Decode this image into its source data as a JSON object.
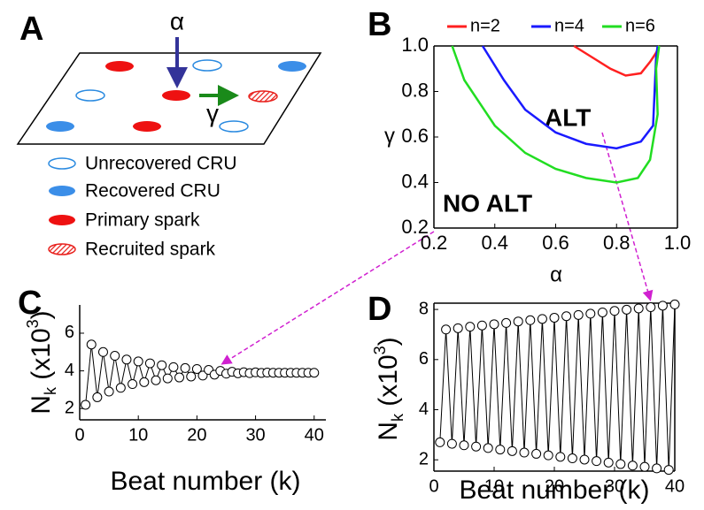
{
  "panel_a": {
    "label": "A",
    "alpha": "α",
    "gamma": "γ",
    "legend": [
      "Unrecovered CRU",
      "Recovered CRU",
      "Primary spark",
      "Recruited spark"
    ]
  },
  "chart_data": [
    {
      "type": "line",
      "panel_label": "B",
      "xlabel": "α",
      "ylabel": "γ",
      "xlim": [
        0.2,
        1.0
      ],
      "ylim": [
        0.2,
        1.0
      ],
      "xticks": [
        0.2,
        0.4,
        0.6,
        0.8,
        {
          "value": 1,
          "label": "1.0"
        }
      ],
      "yticks": [
        0.2,
        0.4,
        0.6,
        0.8,
        {
          "value": 1,
          "label": "1.0"
        }
      ],
      "legend": "top",
      "annotations": [
        "ALT",
        "NO ALT"
      ],
      "series": [
        {
          "name": "n=2",
          "color": "#ff2020",
          "x": [
            0.66,
            0.72,
            0.78,
            0.83,
            0.88,
            0.91,
            0.93,
            0.94
          ],
          "values": [
            1.0,
            0.95,
            0.9,
            0.87,
            0.88,
            0.93,
            0.97,
            1.0
          ]
        },
        {
          "name": "n=4",
          "color": "#1a1aff",
          "x": [
            0.36,
            0.43,
            0.5,
            0.6,
            0.7,
            0.8,
            0.88,
            0.92,
            0.925,
            0.93,
            0.935
          ],
          "values": [
            1.0,
            0.85,
            0.72,
            0.62,
            0.57,
            0.55,
            0.58,
            0.65,
            0.8,
            0.95,
            1.0
          ]
        },
        {
          "name": "n=6",
          "color": "#22dd22",
          "x": [
            0.26,
            0.3,
            0.4,
            0.5,
            0.6,
            0.7,
            0.8,
            0.87,
            0.91,
            0.935,
            0.93,
            0.94
          ],
          "values": [
            1.0,
            0.85,
            0.65,
            0.53,
            0.46,
            0.42,
            0.4,
            0.42,
            0.5,
            0.7,
            0.9,
            1.0
          ]
        }
      ]
    },
    {
      "type": "line",
      "panel_label": "C",
      "xlabel": "Beat number (k)",
      "ylabel": [
        "N",
        "k",
        " (x10",
        "3",
        ")"
      ],
      "xlim": [
        0,
        42
      ],
      "ylim": [
        1.4,
        7.5
      ],
      "xticks": [
        0,
        10,
        20,
        30,
        40
      ],
      "yticks": [
        2,
        4,
        6
      ],
      "x": [
        1,
        2,
        3,
        4,
        5,
        6,
        7,
        8,
        9,
        10,
        11,
        12,
        13,
        14,
        15,
        16,
        17,
        18,
        19,
        20,
        21,
        22,
        23,
        24,
        25,
        26,
        27,
        28,
        29,
        30,
        31,
        32,
        33,
        34,
        35,
        36,
        37,
        38,
        39,
        40
      ],
      "values": [
        2.2,
        5.4,
        2.6,
        5.0,
        2.9,
        4.8,
        3.1,
        4.6,
        3.3,
        4.5,
        3.4,
        4.4,
        3.5,
        4.3,
        3.6,
        4.2,
        3.65,
        4.15,
        3.7,
        4.1,
        3.75,
        4.05,
        3.8,
        4.0,
        3.85,
        3.95,
        3.87,
        3.93,
        3.88,
        3.92,
        3.89,
        3.91,
        3.9,
        3.9,
        3.9,
        3.9,
        3.9,
        3.9,
        3.9,
        3.9
      ]
    },
    {
      "type": "line",
      "panel_label": "D",
      "xlabel": "Beat number (k)",
      "ylabel": [
        "N",
        "k",
        " (x10",
        "3",
        ")"
      ],
      "xlim": [
        0,
        40
      ],
      "ylim": [
        1.55,
        8.25
      ],
      "xticks": [
        0,
        10,
        20,
        30,
        40
      ],
      "yticks": [
        2,
        4,
        6,
        8
      ],
      "x": [
        1,
        2,
        3,
        4,
        5,
        6,
        7,
        8,
        9,
        10,
        11,
        12,
        13,
        14,
        15,
        16,
        17,
        18,
        19,
        20,
        21,
        22,
        23,
        24,
        25,
        26,
        27,
        28,
        29,
        30,
        31,
        32,
        33,
        34,
        35,
        36,
        37,
        38,
        39,
        40
      ],
      "values": [
        2.7,
        7.2,
        2.64,
        7.25,
        2.58,
        7.31,
        2.53,
        7.36,
        2.47,
        7.41,
        2.41,
        7.46,
        2.35,
        7.52,
        2.29,
        7.57,
        2.24,
        7.62,
        2.18,
        7.67,
        2.12,
        7.73,
        2.06,
        7.78,
        2.01,
        7.83,
        1.95,
        7.88,
        1.89,
        7.94,
        1.83,
        7.99,
        1.77,
        8.04,
        1.72,
        8.09,
        1.66,
        8.15,
        1.6,
        8.2
      ]
    }
  ]
}
